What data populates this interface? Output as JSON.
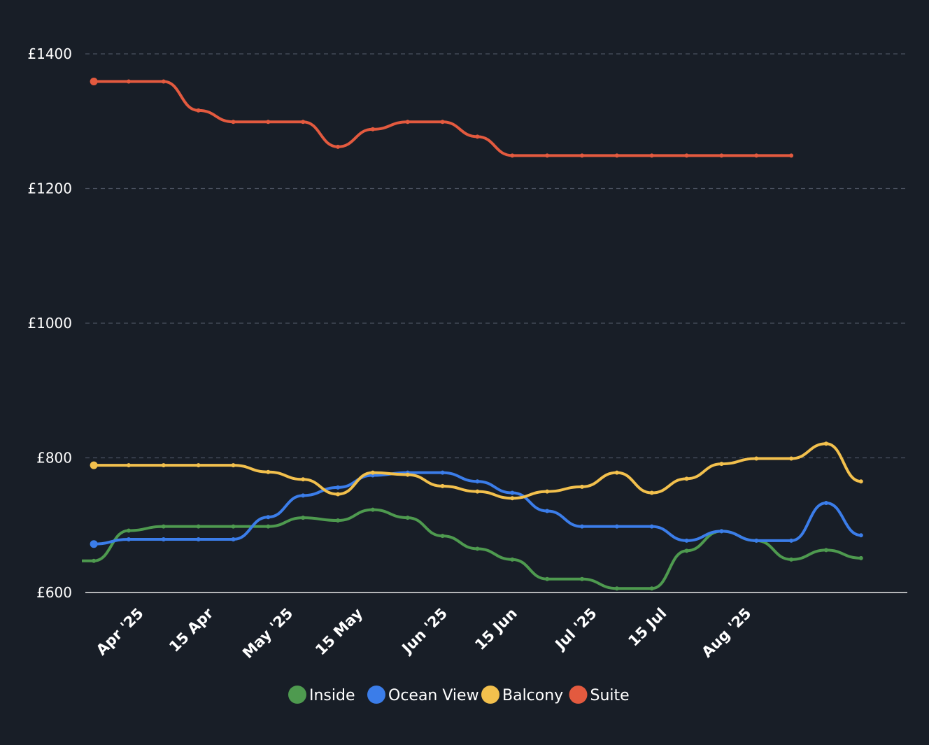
{
  "chart_data": {
    "type": "line",
    "title": "",
    "xlabel": "",
    "ylabel": "",
    "ylim": [
      600,
      1400
    ],
    "yticks": [
      {
        "value": 600,
        "label": "£600"
      },
      {
        "value": 800,
        "label": "£800"
      },
      {
        "value": 1000,
        "label": "£1000"
      },
      {
        "value": 1200,
        "label": "£1200"
      },
      {
        "value": 1400,
        "label": "£1400"
      }
    ],
    "x_start": "2025-03-22",
    "x_end": "2025-09-03",
    "xticks": [
      {
        "date": "2025-04-01",
        "label": "Apr '25"
      },
      {
        "date": "2025-04-15",
        "label": "15 Apr"
      },
      {
        "date": "2025-05-01",
        "label": "May '25"
      },
      {
        "date": "2025-05-15",
        "label": "15 May"
      },
      {
        "date": "2025-06-01",
        "label": "Jun '25"
      },
      {
        "date": "2025-06-15",
        "label": "15 Jun"
      },
      {
        "date": "2025-07-01",
        "label": "Jul '25"
      },
      {
        "date": "2025-07-15",
        "label": "15 Jul"
      },
      {
        "date": "2025-08-01",
        "label": "Aug '25"
      }
    ],
    "x": [
      "2025-03-23",
      "2025-03-30",
      "2025-04-06",
      "2025-04-13",
      "2025-04-20",
      "2025-04-27",
      "2025-05-04",
      "2025-05-11",
      "2025-05-18",
      "2025-05-25",
      "2025-06-01",
      "2025-06-08",
      "2025-06-15",
      "2025-06-22",
      "2025-06-29",
      "2025-07-06",
      "2025-07-13",
      "2025-07-20",
      "2025-07-27",
      "2025-08-03",
      "2025-08-10",
      "2025-08-17",
      "2025-08-24"
    ],
    "series": [
      {
        "name": "Inside",
        "color": "#4e9a4f",
        "values": [
          647,
          692,
          698,
          698,
          698,
          698,
          711,
          707,
          723,
          711,
          684,
          665,
          649,
          620,
          620,
          606,
          606,
          662,
          691,
          677,
          649,
          663,
          651
        ]
      },
      {
        "name": "Ocean View",
        "color": "#3b7de9",
        "values": [
          672,
          679,
          679,
          679,
          679,
          712,
          744,
          756,
          774,
          778,
          778,
          765,
          748,
          721,
          698,
          698,
          698,
          677,
          691,
          677,
          677,
          733,
          685
        ]
      },
      {
        "name": "Balcony",
        "color": "#f2c04d",
        "values": [
          789,
          789,
          789,
          789,
          789,
          779,
          768,
          746,
          778,
          775,
          758,
          750,
          740,
          750,
          757,
          778,
          748,
          769,
          791,
          799,
          799,
          821,
          765
        ]
      },
      {
        "name": "Suite",
        "color": "#e35a3f",
        "values": [
          1359,
          1359,
          1359,
          1316,
          1299,
          1299,
          1299,
          1262,
          1288,
          1299,
          1299,
          1277,
          1249,
          1249,
          1249,
          1249,
          1249,
          1249,
          1249,
          1249,
          1249,
          null,
          null
        ]
      }
    ],
    "legend": {
      "position": "bottom-center"
    },
    "grid": true
  }
}
